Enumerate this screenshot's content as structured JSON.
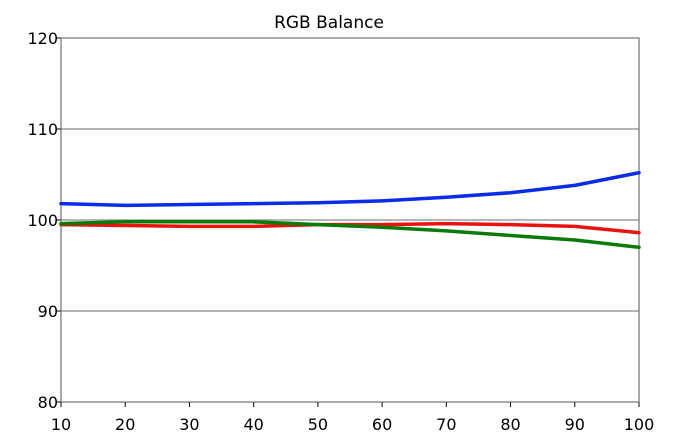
{
  "chart_data": {
    "type": "line",
    "title": "RGB Balance",
    "xlabel": "",
    "ylabel": "",
    "x": [
      10,
      20,
      30,
      40,
      50,
      60,
      70,
      80,
      90,
      100
    ],
    "xlim": [
      10,
      100
    ],
    "ylim": [
      80,
      120
    ],
    "xticks": [
      "10",
      "20",
      "30",
      "40",
      "50",
      "60",
      "70",
      "80",
      "90",
      "100"
    ],
    "yticks": [
      "120",
      "110",
      "100",
      "90",
      "80"
    ],
    "ytick_values": [
      120,
      110,
      100,
      90,
      80
    ],
    "grid": true,
    "legend": "none",
    "series": [
      {
        "color": "#0a2be8",
        "values": [
          101.8,
          101.6,
          101.7,
          101.8,
          101.9,
          102.1,
          102.5,
          103.0,
          103.8,
          105.2
        ]
      },
      {
        "color": "#e8120f",
        "values": [
          99.5,
          99.4,
          99.3,
          99.3,
          99.5,
          99.5,
          99.6,
          99.5,
          99.3,
          98.6
        ]
      },
      {
        "color": "#0b7a0b",
        "values": [
          99.6,
          99.8,
          99.8,
          99.8,
          99.5,
          99.2,
          98.8,
          98.3,
          97.8,
          97.0
        ]
      }
    ]
  }
}
